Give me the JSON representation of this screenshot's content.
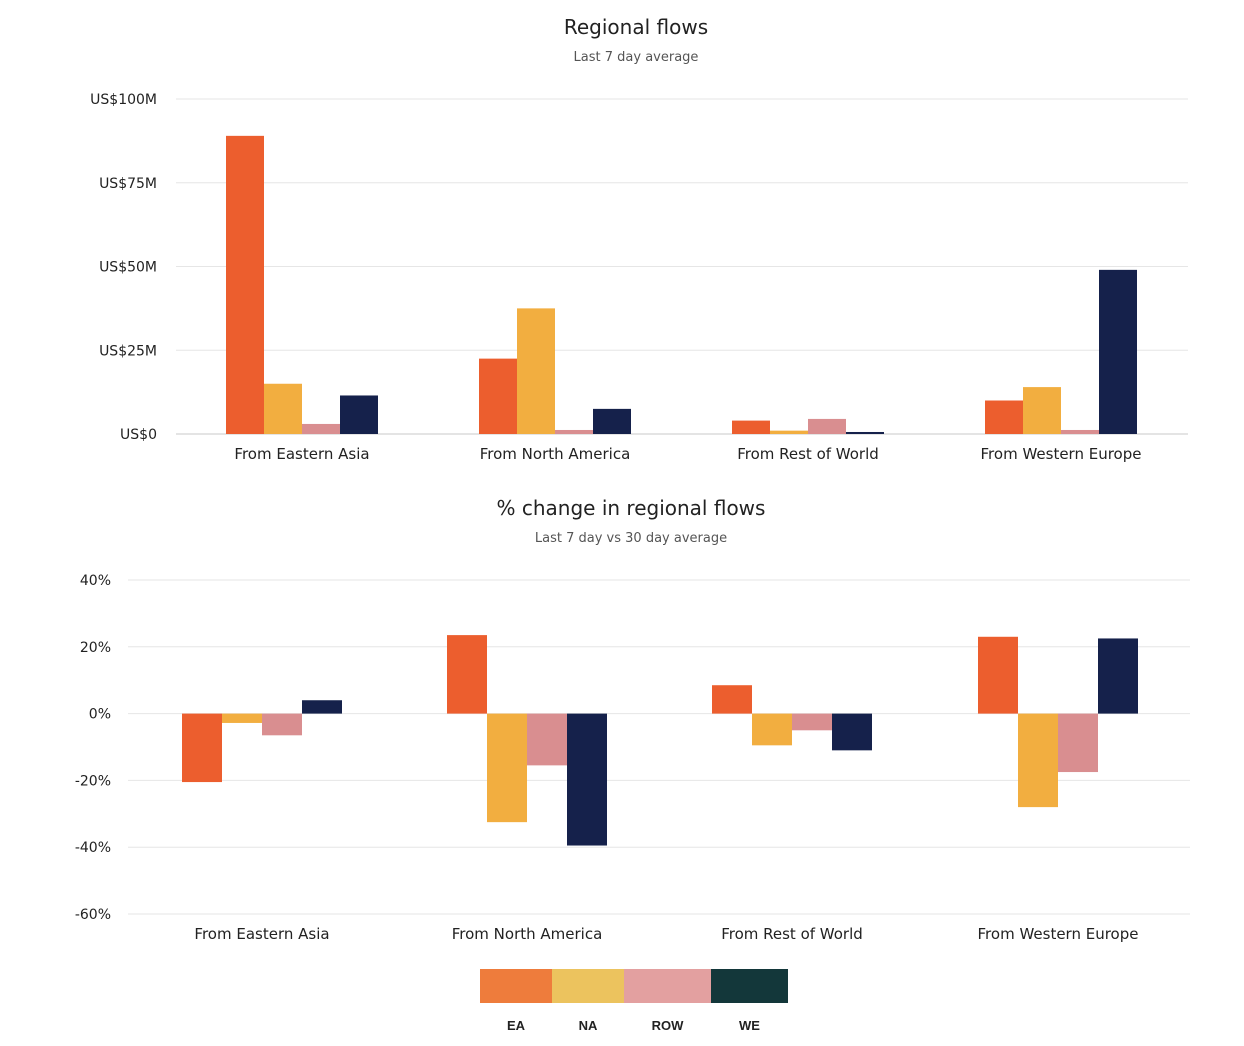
{
  "colors": {
    "EA": "#ec5e2e",
    "NA": "#f2ae40",
    "ROW": "#d98e90",
    "WE": "#15214b",
    "grid": "#e6e6e6",
    "axis": "#c8c8c8"
  },
  "legend": [
    {
      "label": "EA",
      "color": "#ee7c3c"
    },
    {
      "label": "NA",
      "color": "#ecc35e"
    },
    {
      "label": "ROW",
      "color": "#e3a0a0"
    },
    {
      "label": "WE",
      "color": "#13373a"
    }
  ],
  "chart_data": [
    {
      "type": "bar",
      "title": "Regional flows",
      "subtitle": "Last 7 day average",
      "xlabel": "",
      "ylabel": "",
      "categories": [
        "From Eastern Asia",
        "From North America",
        "From Rest of World",
        "From Western Europe"
      ],
      "ylim": [
        0,
        100
      ],
      "yticks": [
        0,
        25,
        50,
        75,
        100
      ],
      "ytick_labels": [
        "US$0",
        "US$25M",
        "US$50M",
        "US$75M",
        "US$100M"
      ],
      "grid": true,
      "legend_position": "bottom",
      "series": [
        {
          "name": "EA",
          "values": [
            89,
            22.5,
            4,
            10
          ]
        },
        {
          "name": "NA",
          "values": [
            15,
            37.5,
            1,
            14
          ]
        },
        {
          "name": "ROW",
          "values": [
            3,
            1.2,
            4.5,
            1.2
          ]
        },
        {
          "name": "WE",
          "values": [
            11.5,
            7.5,
            0.6,
            49
          ]
        }
      ]
    },
    {
      "type": "bar",
      "title": "% change in regional flows",
      "subtitle": "Last 7 day vs 30 day average",
      "xlabel": "",
      "ylabel": "",
      "categories": [
        "From Eastern Asia",
        "From North America",
        "From Rest of World",
        "From Western Europe"
      ],
      "ylim": [
        -60,
        40
      ],
      "yticks": [
        -60,
        -40,
        -20,
        0,
        20,
        40
      ],
      "ytick_labels": [
        "-60%",
        "-40%",
        "-20%",
        "0%",
        "20%",
        "40%"
      ],
      "grid": true,
      "legend_position": "bottom",
      "series": [
        {
          "name": "EA",
          "values": [
            -20.5,
            23.5,
            8.5,
            23
          ]
        },
        {
          "name": "NA",
          "values": [
            -2.8,
            -32.5,
            -9.5,
            -28
          ]
        },
        {
          "name": "ROW",
          "values": [
            -6.5,
            -15.5,
            -5,
            -17.5
          ]
        },
        {
          "name": "WE",
          "values": [
            4,
            -39.5,
            -11,
            22.5
          ]
        }
      ]
    }
  ]
}
